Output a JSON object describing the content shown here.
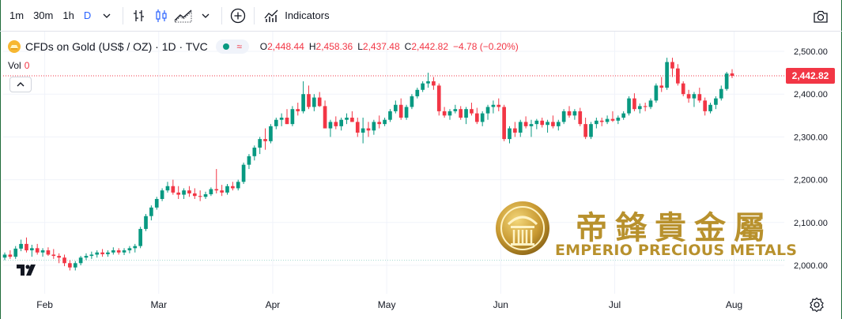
{
  "toolbar": {
    "intervals": [
      "1m",
      "30m",
      "1h",
      "D"
    ],
    "active_interval": "D",
    "indicators_label": "Indicators",
    "icons": [
      "chevron-down-icon",
      "bar-style-icon",
      "candle-style-icon",
      "area-style-icon",
      "add-icon",
      "indicators-icon",
      "camera-icon"
    ]
  },
  "legend": {
    "symbol_title": "CFDs on Gold (US$ / OZ) · 1D · TVC",
    "open_label": "O",
    "open": "2,448.44",
    "high_label": "H",
    "high": "2,458.36",
    "low_label": "L",
    "low": "2,437.48",
    "close_label": "C",
    "close": "2,442.82",
    "change": "−4.78 (−0.20%)",
    "vol_label": "Vol",
    "vol_value": "0"
  },
  "price_tag": "2,442.82",
  "watermark": {
    "chinese": "帝鋒貴金屬",
    "english": "EMPERIO PRECIOUS METALS"
  },
  "colors": {
    "up": "#089981",
    "down": "#f23645",
    "grid": "#f0f3fa",
    "axis_text": "#131722",
    "brand": "#b8912d"
  },
  "chart_data": {
    "type": "candlestick",
    "title": "CFDs on Gold (US$ / OZ) · 1D · TVC",
    "ylim": [
      1970,
      2520
    ],
    "y_ticks": [
      "2,500.00",
      "2,400.00",
      "2,300.00",
      "2,200.00",
      "2,100.00",
      "2,000.00"
    ],
    "y_tick_values": [
      2500,
      2400,
      2300,
      2200,
      2100,
      2000
    ],
    "x_ticks": [
      "Feb",
      "Mar",
      "Apr",
      "May",
      "Jun",
      "Jul",
      "Aug"
    ],
    "x_tick_index": [
      3,
      24,
      45,
      66,
      87,
      108,
      130
    ],
    "last_price": 2442.82,
    "candles": [
      [
        2018,
        2030,
        2012,
        2025
      ],
      [
        2025,
        2035,
        2015,
        2020
      ],
      [
        2020,
        2045,
        2015,
        2039
      ],
      [
        2039,
        2060,
        2033,
        2050
      ],
      [
        2050,
        2065,
        2030,
        2035
      ],
      [
        2035,
        2048,
        2020,
        2040
      ],
      [
        2040,
        2050,
        2025,
        2030
      ],
      [
        2030,
        2040,
        2020,
        2035
      ],
      [
        2035,
        2042,
        2022,
        2025
      ],
      [
        2025,
        2038,
        2015,
        2022
      ],
      [
        2022,
        2028,
        2005,
        2018
      ],
      [
        2018,
        2025,
        1998,
        2005
      ],
      [
        2005,
        2012,
        1988,
        1995
      ],
      [
        1995,
        2010,
        1988,
        2005
      ],
      [
        2005,
        2022,
        2000,
        2018
      ],
      [
        2018,
        2028,
        2012,
        2022
      ],
      [
        2022,
        2032,
        2015,
        2025
      ],
      [
        2025,
        2035,
        2018,
        2030
      ],
      [
        2030,
        2038,
        2020,
        2026
      ],
      [
        2026,
        2035,
        2020,
        2030
      ],
      [
        2030,
        2042,
        2025,
        2035
      ],
      [
        2035,
        2040,
        2025,
        2030
      ],
      [
        2030,
        2040,
        2024,
        2035
      ],
      [
        2035,
        2045,
        2028,
        2040
      ],
      [
        2040,
        2050,
        2030,
        2045
      ],
      [
        2045,
        2090,
        2040,
        2085
      ],
      [
        2085,
        2120,
        2080,
        2115
      ],
      [
        2115,
        2140,
        2105,
        2135
      ],
      [
        2135,
        2160,
        2130,
        2155
      ],
      [
        2155,
        2180,
        2150,
        2175
      ],
      [
        2175,
        2195,
        2170,
        2185
      ],
      [
        2185,
        2200,
        2165,
        2170
      ],
      [
        2170,
        2185,
        2155,
        2165
      ],
      [
        2165,
        2180,
        2155,
        2175
      ],
      [
        2175,
        2185,
        2160,
        2168
      ],
      [
        2168,
        2180,
        2155,
        2162
      ],
      [
        2162,
        2175,
        2150,
        2160
      ],
      [
        2160,
        2172,
        2155,
        2166
      ],
      [
        2166,
        2182,
        2162,
        2178
      ],
      [
        2178,
        2225,
        2168,
        2175
      ],
      [
        2175,
        2188,
        2162,
        2170
      ],
      [
        2170,
        2190,
        2165,
        2185
      ],
      [
        2185,
        2195,
        2175,
        2180
      ],
      [
        2180,
        2200,
        2175,
        2195
      ],
      [
        2195,
        2240,
        2190,
        2235
      ],
      [
        2235,
        2260,
        2225,
        2255
      ],
      [
        2255,
        2280,
        2245,
        2275
      ],
      [
        2275,
        2300,
        2260,
        2295
      ],
      [
        2295,
        2320,
        2270,
        2290
      ],
      [
        2290,
        2330,
        2285,
        2325
      ],
      [
        2325,
        2345,
        2318,
        2340
      ],
      [
        2340,
        2355,
        2325,
        2345
      ],
      [
        2345,
        2365,
        2330,
        2330
      ],
      [
        2330,
        2372,
        2325,
        2365
      ],
      [
        2365,
        2380,
        2350,
        2360
      ],
      [
        2360,
        2430,
        2355,
        2400
      ],
      [
        2400,
        2420,
        2365,
        2370
      ],
      [
        2370,
        2400,
        2360,
        2392
      ],
      [
        2392,
        2405,
        2370,
        2372
      ],
      [
        2372,
        2385,
        2320,
        2320
      ],
      [
        2320,
        2340,
        2300,
        2335
      ],
      [
        2335,
        2348,
        2318,
        2325
      ],
      [
        2325,
        2345,
        2315,
        2340
      ],
      [
        2340,
        2355,
        2330,
        2345
      ],
      [
        2345,
        2360,
        2335,
        2335
      ],
      [
        2335,
        2345,
        2300,
        2310
      ],
      [
        2310,
        2345,
        2285,
        2320
      ],
      [
        2320,
        2335,
        2300,
        2315
      ],
      [
        2315,
        2340,
        2305,
        2335
      ],
      [
        2335,
        2350,
        2320,
        2330
      ],
      [
        2330,
        2345,
        2325,
        2340
      ],
      [
        2340,
        2365,
        2335,
        2360
      ],
      [
        2360,
        2385,
        2355,
        2375
      ],
      [
        2375,
        2390,
        2340,
        2345
      ],
      [
        2345,
        2375,
        2340,
        2370
      ],
      [
        2370,
        2400,
        2365,
        2395
      ],
      [
        2395,
        2415,
        2390,
        2410
      ],
      [
        2410,
        2430,
        2405,
        2425
      ],
      [
        2425,
        2450,
        2415,
        2430
      ],
      [
        2430,
        2440,
        2410,
        2420
      ],
      [
        2420,
        2425,
        2350,
        2360
      ],
      [
        2360,
        2370,
        2345,
        2350
      ],
      [
        2350,
        2365,
        2340,
        2360
      ],
      [
        2360,
        2375,
        2355,
        2365
      ],
      [
        2365,
        2372,
        2340,
        2345
      ],
      [
        2345,
        2370,
        2330,
        2365
      ],
      [
        2365,
        2380,
        2350,
        2355
      ],
      [
        2355,
        2368,
        2330,
        2335
      ],
      [
        2335,
        2360,
        2325,
        2355
      ],
      [
        2355,
        2375,
        2340,
        2370
      ],
      [
        2370,
        2385,
        2355,
        2375
      ],
      [
        2375,
        2390,
        2360,
        2370
      ],
      [
        2370,
        2375,
        2290,
        2295
      ],
      [
        2295,
        2325,
        2285,
        2320
      ],
      [
        2320,
        2335,
        2300,
        2310
      ],
      [
        2310,
        2340,
        2300,
        2335
      ],
      [
        2335,
        2348,
        2320,
        2325
      ],
      [
        2325,
        2340,
        2300,
        2330
      ],
      [
        2330,
        2342,
        2318,
        2338
      ],
      [
        2338,
        2345,
        2322,
        2328
      ],
      [
        2328,
        2340,
        2310,
        2335
      ],
      [
        2335,
        2350,
        2320,
        2325
      ],
      [
        2325,
        2340,
        2315,
        2335
      ],
      [
        2335,
        2365,
        2330,
        2360
      ],
      [
        2360,
        2372,
        2345,
        2350
      ],
      [
        2350,
        2365,
        2340,
        2360
      ],
      [
        2360,
        2368,
        2325,
        2330
      ],
      [
        2330,
        2345,
        2295,
        2300
      ],
      [
        2300,
        2335,
        2295,
        2330
      ],
      [
        2330,
        2345,
        2320,
        2338
      ],
      [
        2338,
        2345,
        2325,
        2335
      ],
      [
        2335,
        2350,
        2330,
        2342
      ],
      [
        2342,
        2360,
        2335,
        2338
      ],
      [
        2338,
        2350,
        2330,
        2345
      ],
      [
        2345,
        2360,
        2340,
        2355
      ],
      [
        2355,
        2395,
        2350,
        2390
      ],
      [
        2390,
        2402,
        2360,
        2365
      ],
      [
        2365,
        2378,
        2355,
        2372
      ],
      [
        2372,
        2380,
        2360,
        2370
      ],
      [
        2370,
        2390,
        2365,
        2385
      ],
      [
        2385,
        2425,
        2380,
        2420
      ],
      [
        2420,
        2440,
        2405,
        2415
      ],
      [
        2415,
        2485,
        2410,
        2475
      ],
      [
        2475,
        2485,
        2440,
        2460
      ],
      [
        2460,
        2470,
        2420,
        2425
      ],
      [
        2425,
        2430,
        2395,
        2400
      ],
      [
        2400,
        2410,
        2380,
        2390
      ],
      [
        2390,
        2405,
        2370,
        2400
      ],
      [
        2400,
        2415,
        2380,
        2385
      ],
      [
        2385,
        2392,
        2350,
        2360
      ],
      [
        2360,
        2380,
        2355,
        2375
      ],
      [
        2375,
        2395,
        2365,
        2390
      ],
      [
        2390,
        2420,
        2385,
        2412
      ],
      [
        2412,
        2452,
        2408,
        2448
      ],
      [
        2448.44,
        2458.36,
        2437.48,
        2442.82
      ]
    ]
  }
}
